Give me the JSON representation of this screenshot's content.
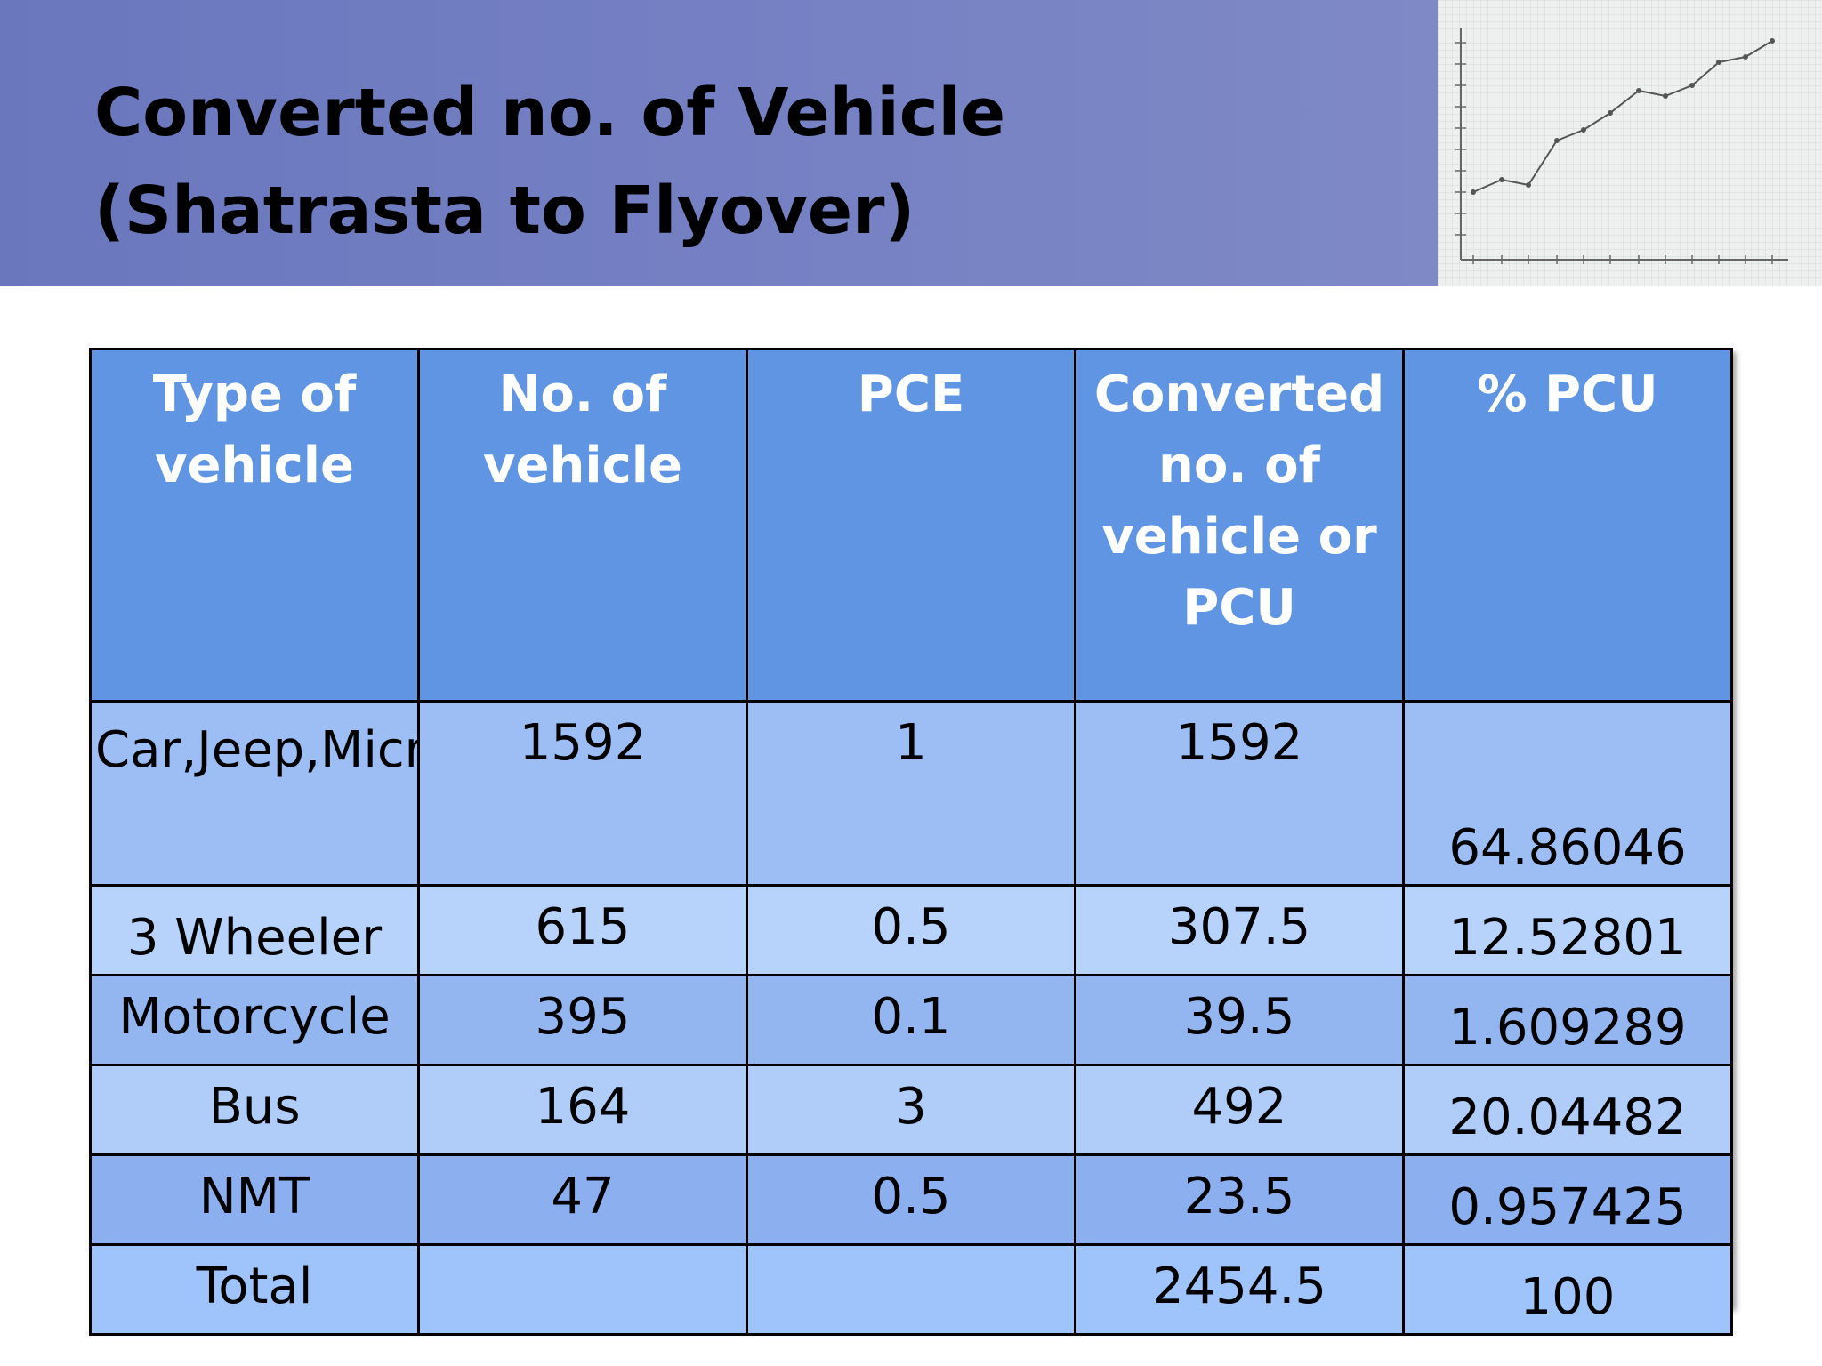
{
  "slide": {
    "title_line1": "Converted no. of Vehicle",
    "title_line2": "(Shatrasta to Flyover)"
  },
  "colors": {
    "header_bg": "#7380c1",
    "table_header_bg": "#5f95e2",
    "table_header_text": "#ffffff"
  },
  "thumbnail": {
    "icon": "line-chart-thumbnail-icon"
  },
  "table": {
    "headers": [
      "Type of vehicle",
      "No. of vehicle",
      "PCE",
      "Converted no. of vehicle or PCU",
      "% PCU"
    ],
    "rows": [
      [
        "Car,Jeep,Micro,Taxi",
        "1592",
        "1",
        "1592",
        "64.86046"
      ],
      [
        "3 Wheeler",
        "615",
        "0.5",
        "307.5",
        "12.52801"
      ],
      [
        "Motorcycle",
        "395",
        "0.1",
        "39.5",
        "1.609289"
      ],
      [
        "Bus",
        "164",
        "3",
        "492",
        "20.04482"
      ],
      [
        "NMT",
        "47",
        "0.5",
        "23.5",
        "0.957425"
      ],
      [
        "Total",
        "",
        "",
        "2454.5",
        "100"
      ]
    ]
  }
}
